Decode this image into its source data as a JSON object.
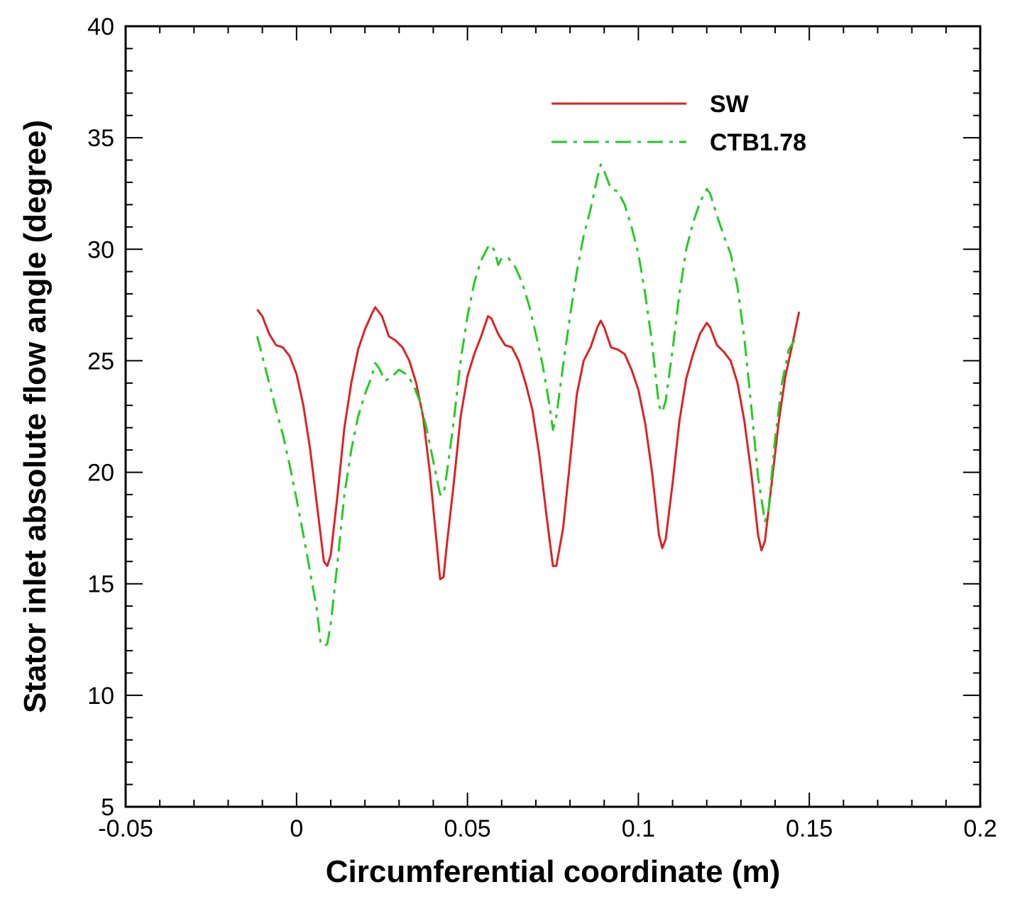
{
  "chart_data": {
    "type": "line",
    "xlabel": "Circumferential coordinate (m)",
    "ylabel": "Stator inlet absolute flow angle (degree)",
    "xlim": [
      -0.05,
      0.2
    ],
    "ylim": [
      5,
      40
    ],
    "x_ticks": [
      -0.05,
      0,
      0.05,
      0.1,
      0.15,
      0.2
    ],
    "x_tick_labels": [
      "-0.05",
      "0",
      "0.05",
      "0.1",
      "0.15",
      "0.2"
    ],
    "y_ticks": [
      5,
      10,
      15,
      20,
      25,
      30,
      35,
      40
    ],
    "y_tick_labels": [
      "5",
      "10",
      "15",
      "20",
      "25",
      "30",
      "35",
      "40"
    ],
    "x_minor_step": 0.01,
    "y_minor_step": 1,
    "grid": false,
    "legend_position": "top-right",
    "series": [
      {
        "name": "SW",
        "color": "#dd2222",
        "dash": "solid",
        "points": [
          [
            -0.0115,
            27.3
          ],
          [
            -0.01,
            27.0
          ],
          [
            -0.008,
            26.2
          ],
          [
            -0.006,
            25.7
          ],
          [
            -0.004,
            25.6
          ],
          [
            -0.002,
            25.2
          ],
          [
            0.0,
            24.4
          ],
          [
            0.002,
            23.0
          ],
          [
            0.004,
            21.0
          ],
          [
            0.006,
            18.5
          ],
          [
            0.008,
            16.0
          ],
          [
            0.009,
            15.8
          ],
          [
            0.01,
            16.3
          ],
          [
            0.012,
            19.0
          ],
          [
            0.014,
            22.0
          ],
          [
            0.016,
            24.0
          ],
          [
            0.018,
            25.5
          ],
          [
            0.02,
            26.4
          ],
          [
            0.022,
            27.1
          ],
          [
            0.023,
            27.4
          ],
          [
            0.025,
            27.0
          ],
          [
            0.027,
            26.1
          ],
          [
            0.029,
            25.9
          ],
          [
            0.031,
            25.6
          ],
          [
            0.033,
            25.0
          ],
          [
            0.035,
            24.0
          ],
          [
            0.037,
            22.5
          ],
          [
            0.039,
            20.0
          ],
          [
            0.041,
            16.8
          ],
          [
            0.042,
            15.2
          ],
          [
            0.043,
            15.3
          ],
          [
            0.044,
            16.8
          ],
          [
            0.046,
            19.5
          ],
          [
            0.048,
            22.5
          ],
          [
            0.05,
            24.3
          ],
          [
            0.052,
            25.3
          ],
          [
            0.054,
            26.1
          ],
          [
            0.056,
            27.0
          ],
          [
            0.057,
            26.9
          ],
          [
            0.059,
            26.2
          ],
          [
            0.061,
            25.7
          ],
          [
            0.063,
            25.6
          ],
          [
            0.065,
            25.0
          ],
          [
            0.067,
            24.0
          ],
          [
            0.069,
            22.8
          ],
          [
            0.071,
            20.8
          ],
          [
            0.073,
            18.2
          ],
          [
            0.075,
            15.8
          ],
          [
            0.076,
            15.8
          ],
          [
            0.078,
            17.5
          ],
          [
            0.08,
            20.5
          ],
          [
            0.082,
            23.5
          ],
          [
            0.084,
            25.0
          ],
          [
            0.086,
            25.6
          ],
          [
            0.088,
            26.5
          ],
          [
            0.089,
            26.8
          ],
          [
            0.09,
            26.5
          ],
          [
            0.092,
            25.6
          ],
          [
            0.094,
            25.5
          ],
          [
            0.096,
            25.3
          ],
          [
            0.098,
            24.6
          ],
          [
            0.1,
            23.7
          ],
          [
            0.102,
            22.2
          ],
          [
            0.104,
            20.0
          ],
          [
            0.106,
            17.2
          ],
          [
            0.107,
            16.6
          ],
          [
            0.108,
            17.0
          ],
          [
            0.11,
            19.5
          ],
          [
            0.112,
            22.3
          ],
          [
            0.114,
            24.2
          ],
          [
            0.116,
            25.3
          ],
          [
            0.118,
            26.2
          ],
          [
            0.12,
            26.7
          ],
          [
            0.121,
            26.5
          ],
          [
            0.123,
            25.7
          ],
          [
            0.125,
            25.4
          ],
          [
            0.127,
            25.0
          ],
          [
            0.129,
            24.0
          ],
          [
            0.131,
            22.3
          ],
          [
            0.133,
            20.0
          ],
          [
            0.135,
            17.2
          ],
          [
            0.136,
            16.5
          ],
          [
            0.137,
            16.9
          ],
          [
            0.139,
            19.5
          ],
          [
            0.141,
            22.2
          ],
          [
            0.143,
            24.3
          ],
          [
            0.145,
            25.7
          ],
          [
            0.147,
            27.2
          ]
        ]
      },
      {
        "name": "CTB1.78",
        "color": "#22cc22",
        "dash": "dashdot",
        "points": [
          [
            -0.0115,
            26.1
          ],
          [
            -0.01,
            25.2
          ],
          [
            -0.008,
            24.0
          ],
          [
            -0.006,
            22.8
          ],
          [
            -0.004,
            21.7
          ],
          [
            -0.002,
            20.3
          ],
          [
            0.0,
            18.8
          ],
          [
            0.002,
            17.2
          ],
          [
            0.004,
            15.5
          ],
          [
            0.006,
            13.8
          ],
          [
            0.007,
            12.4
          ],
          [
            0.008,
            12.2
          ],
          [
            0.009,
            12.3
          ],
          [
            0.01,
            13.2
          ],
          [
            0.012,
            16.0
          ],
          [
            0.014,
            19.0
          ],
          [
            0.016,
            21.0
          ],
          [
            0.018,
            22.5
          ],
          [
            0.02,
            23.5
          ],
          [
            0.022,
            24.3
          ],
          [
            0.023,
            24.9
          ],
          [
            0.024,
            24.7
          ],
          [
            0.026,
            24.1
          ],
          [
            0.028,
            24.3
          ],
          [
            0.03,
            24.6
          ],
          [
            0.032,
            24.4
          ],
          [
            0.034,
            24.0
          ],
          [
            0.036,
            23.2
          ],
          [
            0.038,
            22.0
          ],
          [
            0.04,
            20.5
          ],
          [
            0.042,
            19.0
          ],
          [
            0.043,
            19.0
          ],
          [
            0.044,
            20.0
          ],
          [
            0.046,
            22.3
          ],
          [
            0.048,
            25.0
          ],
          [
            0.05,
            27.0
          ],
          [
            0.052,
            28.5
          ],
          [
            0.054,
            29.5
          ],
          [
            0.056,
            30.1
          ],
          [
            0.057,
            30.2
          ],
          [
            0.058,
            29.9
          ],
          [
            0.059,
            29.3
          ],
          [
            0.06,
            29.6
          ],
          [
            0.062,
            29.6
          ],
          [
            0.064,
            29.2
          ],
          [
            0.066,
            28.5
          ],
          [
            0.068,
            27.5
          ],
          [
            0.07,
            26.2
          ],
          [
            0.072,
            24.8
          ],
          [
            0.074,
            23.0
          ],
          [
            0.075,
            21.9
          ],
          [
            0.076,
            22.5
          ],
          [
            0.078,
            24.8
          ],
          [
            0.08,
            27.0
          ],
          [
            0.082,
            29.0
          ],
          [
            0.084,
            30.6
          ],
          [
            0.086,
            31.8
          ],
          [
            0.088,
            33.2
          ],
          [
            0.089,
            33.8
          ],
          [
            0.09,
            33.5
          ],
          [
            0.092,
            32.7
          ],
          [
            0.094,
            32.6
          ],
          [
            0.096,
            32.0
          ],
          [
            0.098,
            31.0
          ],
          [
            0.1,
            29.8
          ],
          [
            0.102,
            28.0
          ],
          [
            0.104,
            25.8
          ],
          [
            0.106,
            23.0
          ],
          [
            0.107,
            22.7
          ],
          [
            0.108,
            23.2
          ],
          [
            0.11,
            25.5
          ],
          [
            0.112,
            28.0
          ],
          [
            0.114,
            30.0
          ],
          [
            0.116,
            31.2
          ],
          [
            0.118,
            32.1
          ],
          [
            0.12,
            32.7
          ],
          [
            0.121,
            32.5
          ],
          [
            0.123,
            31.5
          ],
          [
            0.125,
            30.6
          ],
          [
            0.127,
            29.8
          ],
          [
            0.129,
            28.3
          ],
          [
            0.131,
            26.0
          ],
          [
            0.133,
            23.0
          ],
          [
            0.135,
            19.8
          ],
          [
            0.137,
            17.8
          ],
          [
            0.138,
            18.2
          ],
          [
            0.14,
            21.5
          ],
          [
            0.142,
            24.0
          ],
          [
            0.144,
            25.5
          ],
          [
            0.146,
            26.0
          ],
          [
            0.147,
            26.1
          ]
        ]
      }
    ]
  }
}
